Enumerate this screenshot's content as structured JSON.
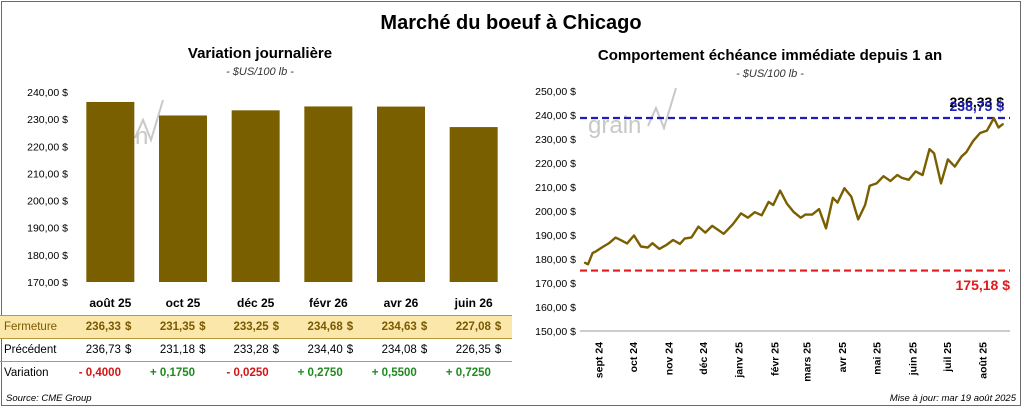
{
  "title": "Marché du boeuf à Chicago",
  "colors": {
    "bar": "#7a5f00",
    "line": "#7a5f00",
    "high_line": "#1e1eb4",
    "low_line": "#e01b1b",
    "table_close_bg": "#fbe7a9"
  },
  "chart_data": [
    {
      "type": "bar",
      "title": "Variation journalière",
      "subtitle": "- $US/100 lb -",
      "categories": [
        "août 25",
        "oct 25",
        "déc 25",
        "févr 26",
        "avr 26",
        "juin 26"
      ],
      "values": [
        236.33,
        231.35,
        233.25,
        234.68,
        234.63,
        227.08
      ],
      "ylim": [
        170,
        240
      ],
      "yticks": [
        "240,00 $",
        "230,00 $",
        "220,00 $",
        "210,00 $",
        "200,00 $",
        "190,00 $",
        "180,00 $",
        "170,00 $"
      ],
      "grid": false
    },
    {
      "type": "line",
      "title": "Comportement échéance immédiate depuis 1 an",
      "subtitle": "- $US/100 lb -",
      "ylim": [
        150,
        250
      ],
      "yticks": [
        "250,00 $",
        "240,00 $",
        "230,00 $",
        "220,00 $",
        "210,00 $",
        "200,00 $",
        "190,00 $",
        "180,00 $",
        "170,00 $",
        "160,00 $",
        "150,00 $"
      ],
      "xticks": [
        "sept 24",
        "oct 24",
        "nov 24",
        "déc 24",
        "janv 25",
        "févr 25",
        "mars 25",
        "avr 25",
        "mai 25",
        "juin 25",
        "juil 25",
        "août 25"
      ],
      "high": {
        "value": 238.75,
        "label": "238,75 $"
      },
      "low": {
        "value": 175.18,
        "label": "175,18 $"
      },
      "last": {
        "value": 236.33,
        "label": "236,33 $"
      },
      "series": [
        {
          "x": [
            "2024-08-20",
            "2024-08-23",
            "2024-08-27",
            "2024-08-30",
            "2024-09-04",
            "2024-09-10",
            "2024-09-16",
            "2024-09-20",
            "2024-09-26",
            "2024-10-02",
            "2024-10-08",
            "2024-10-14",
            "2024-10-18",
            "2024-10-24",
            "2024-10-30",
            "2024-11-05",
            "2024-11-11",
            "2024-11-15",
            "2024-11-21",
            "2024-11-27",
            "2024-12-03",
            "2024-12-09",
            "2024-12-13",
            "2024-12-19",
            "2024-12-27",
            "2025-01-03",
            "2025-01-09",
            "2025-01-15",
            "2025-01-21",
            "2025-01-27",
            "2025-01-31",
            "2025-02-06",
            "2025-02-12",
            "2025-02-18",
            "2025-02-24",
            "2025-02-28",
            "2025-03-06",
            "2025-03-12",
            "2025-03-18",
            "2025-03-24",
            "2025-03-28",
            "2025-04-03",
            "2025-04-09",
            "2025-04-15",
            "2025-04-21",
            "2025-04-25",
            "2025-05-01",
            "2025-05-07",
            "2025-05-13",
            "2025-05-19",
            "2025-05-23",
            "2025-05-29",
            "2025-06-04",
            "2025-06-10",
            "2025-06-16",
            "2025-06-20",
            "2025-06-26",
            "2025-07-02",
            "2025-07-08",
            "2025-07-14",
            "2025-07-18",
            "2025-07-24",
            "2025-07-30",
            "2025-08-05",
            "2025-08-11",
            "2025-08-15",
            "2025-08-19"
          ],
          "y": [
            178.5,
            177.8,
            182.5,
            183.2,
            184.8,
            186.5,
            188.9,
            188.0,
            186.5,
            189.8,
            185.2,
            184.8,
            186.6,
            184.2,
            185.8,
            187.9,
            186.3,
            188.5,
            189.0,
            193.5,
            191.0,
            193.8,
            192.5,
            190.5,
            194.5,
            199.0,
            197.2,
            199.5,
            198.2,
            203.8,
            202.5,
            208.5,
            203.0,
            199.5,
            197.2,
            198.5,
            198.5,
            200.8,
            192.8,
            205.5,
            203.5,
            209.5,
            206.0,
            196.5,
            202.5,
            210.5,
            211.5,
            214.5,
            212.5,
            215.0,
            213.8,
            213.0,
            216.5,
            215.0,
            225.8,
            224.0,
            211.5,
            221.5,
            218.5,
            222.8,
            224.5,
            229.2,
            232.5,
            233.5,
            238.7,
            234.8,
            236.3
          ]
        }
      ]
    }
  ],
  "table": {
    "rows": [
      {
        "label": "Fermeture",
        "values": [
          "236,33",
          "231,35",
          "233,25",
          "234,68",
          "234,63",
          "227,08"
        ],
        "unit": "$"
      },
      {
        "label": "Précédent",
        "values": [
          "236,73",
          "231,18",
          "233,28",
          "234,40",
          "234,08",
          "226,35"
        ],
        "unit": "$"
      },
      {
        "label": "Variation",
        "values": [
          "- 0,4000",
          "+ 0,1750",
          "- 0,0250",
          "+ 0,2750",
          "+ 0,5500",
          "+ 0,7250"
        ]
      }
    ]
  },
  "watermark": "grain",
  "footer": {
    "source": "Source: CME Group",
    "updated": "Mise à jour: mar 19 août 2025"
  }
}
